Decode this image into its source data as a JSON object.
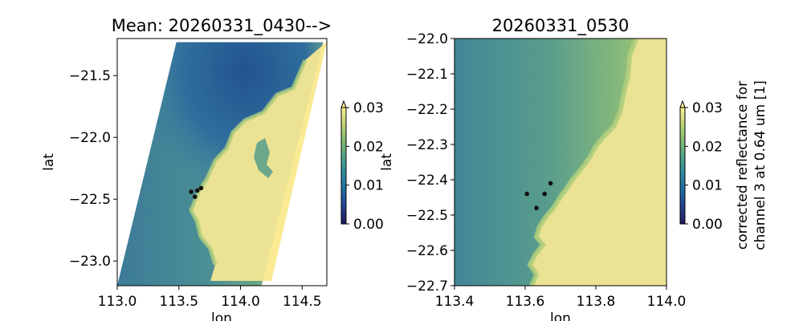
{
  "colors": {
    "deep_water": "#1d4d8e",
    "mid_water": "#3f7f9c",
    "shelf_water": "#7fb37d",
    "land": "#f9ea93",
    "marker": "#111111",
    "colormap": [
      "#23195e",
      "#24408f",
      "#1f6aa3",
      "#2d8b9e",
      "#4ea38a",
      "#82bb72",
      "#bfd578",
      "#fbf08f"
    ]
  },
  "chart_data": [
    {
      "type": "heatmap",
      "title": "Mean: 20260331_0430-->",
      "xlabel": "lon",
      "ylabel": "lat",
      "xlim": [
        113.0,
        114.7
      ],
      "ylim": [
        -23.2,
        -21.2
      ],
      "xticks": [
        "113.0",
        "113.5",
        "114.0",
        "114.5"
      ],
      "yticks": [
        "−21.5",
        "−22.0",
        "−22.5",
        "−23.0"
      ],
      "swath_corners": [
        [
          113.48,
          -21.23
        ],
        [
          114.67,
          -21.23
        ],
        [
          114.17,
          -23.2
        ],
        [
          113.0,
          -23.2
        ]
      ],
      "markers": [
        {
          "lon": 113.6,
          "lat": -22.44
        },
        {
          "lon": 113.65,
          "lat": -22.43
        },
        {
          "lon": 113.68,
          "lat": -22.41
        },
        {
          "lon": 113.63,
          "lat": -22.48
        }
      ],
      "colorbar": {
        "ticks": [
          "0.00",
          "0.01",
          "0.02",
          "0.03"
        ],
        "range": [
          0.0,
          0.03
        ],
        "extend": "max"
      }
    },
    {
      "type": "heatmap",
      "title": "20260331_0530",
      "xlabel": "lon",
      "ylabel": "lat",
      "xlim": [
        113.4,
        114.0
      ],
      "ylim": [
        -22.7,
        -22.0
      ],
      "xticks": [
        "113.4",
        "113.6",
        "113.8",
        "114.0"
      ],
      "yticks": [
        "−22.0",
        "−22.1",
        "−22.2",
        "−22.3",
        "−22.4",
        "−22.5",
        "−22.6",
        "−22.7"
      ],
      "markers": [
        {
          "lon": 113.605,
          "lat": -22.44
        },
        {
          "lon": 113.655,
          "lat": -22.44
        },
        {
          "lon": 113.672,
          "lat": -22.41
        },
        {
          "lon": 113.632,
          "lat": -22.48
        }
      ],
      "colorbar": {
        "ticks": [
          "0.00",
          "0.01",
          "0.02",
          "0.03"
        ],
        "range": [
          0.0,
          0.03
        ],
        "extend": "max",
        "label": [
          "corrected reflectance for",
          "channel 3 at 0.64 um [1]"
        ]
      }
    }
  ]
}
